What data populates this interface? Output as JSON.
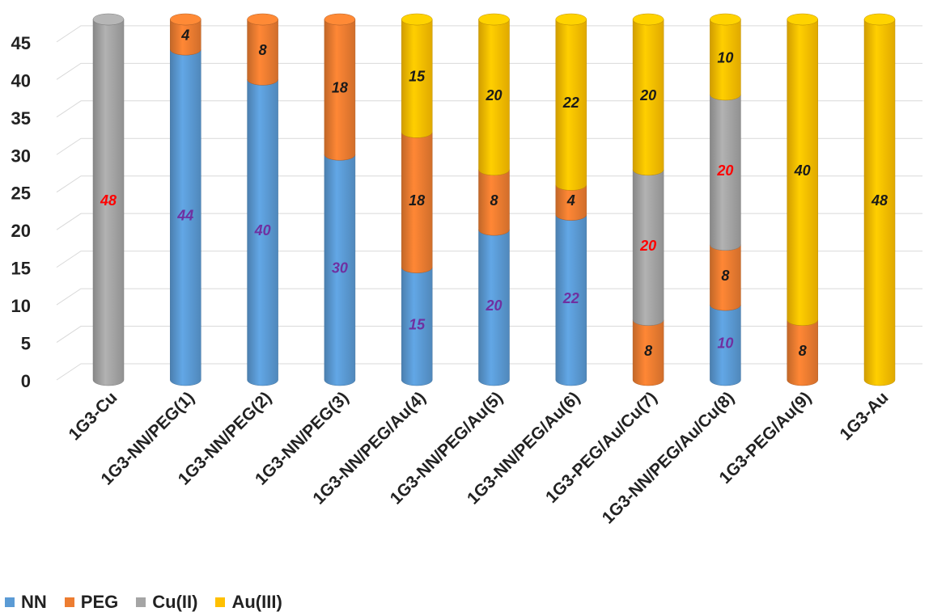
{
  "chart_data": {
    "type": "bar",
    "stacked": true,
    "style": "3d-cylinder",
    "categories": [
      "1G3-Cu",
      "1G3-NN/PEG(1)",
      "1G3-NN/PEG(2)",
      "1G3-NN/PEG(3)",
      "1G3-NN/PEG/Au(4)",
      "1G3-NN/PEG/Au(5)",
      "1G3-NN/PEG/Au(6)",
      "1G3-PEG/Au/Cu(7)",
      "1G3-NN/PEG/Au/Cu(8)",
      "1G3-PEG/Au(9)",
      "1G3-Au"
    ],
    "series": [
      {
        "name": "NN",
        "color": "#5b9bd5",
        "label_color": "#7030a0",
        "values": [
          0,
          44,
          40,
          30,
          15,
          20,
          22,
          0,
          10,
          0,
          0
        ]
      },
      {
        "name": "PEG",
        "color": "#ed7d31",
        "label_color": "#1a1a1a",
        "values": [
          0,
          4,
          8,
          18,
          18,
          8,
          4,
          8,
          8,
          8,
          0
        ]
      },
      {
        "name": "Cu(II)",
        "color": "#a5a5a5",
        "label_color": "#ff0000",
        "values": [
          48,
          0,
          0,
          0,
          0,
          0,
          0,
          20,
          20,
          0,
          0
        ]
      },
      {
        "name": "Au(III)",
        "color": "#ffc000",
        "label_color": "#1a1a1a",
        "values": [
          0,
          0,
          0,
          0,
          15,
          20,
          22,
          20,
          10,
          40,
          48
        ]
      }
    ],
    "yticks": [
      0,
      5,
      10,
      15,
      20,
      25,
      30,
      35,
      40,
      45
    ],
    "ylim": [
      0,
      48
    ],
    "grid": true,
    "legend_position": "bottom-left",
    "data_labels": true
  }
}
